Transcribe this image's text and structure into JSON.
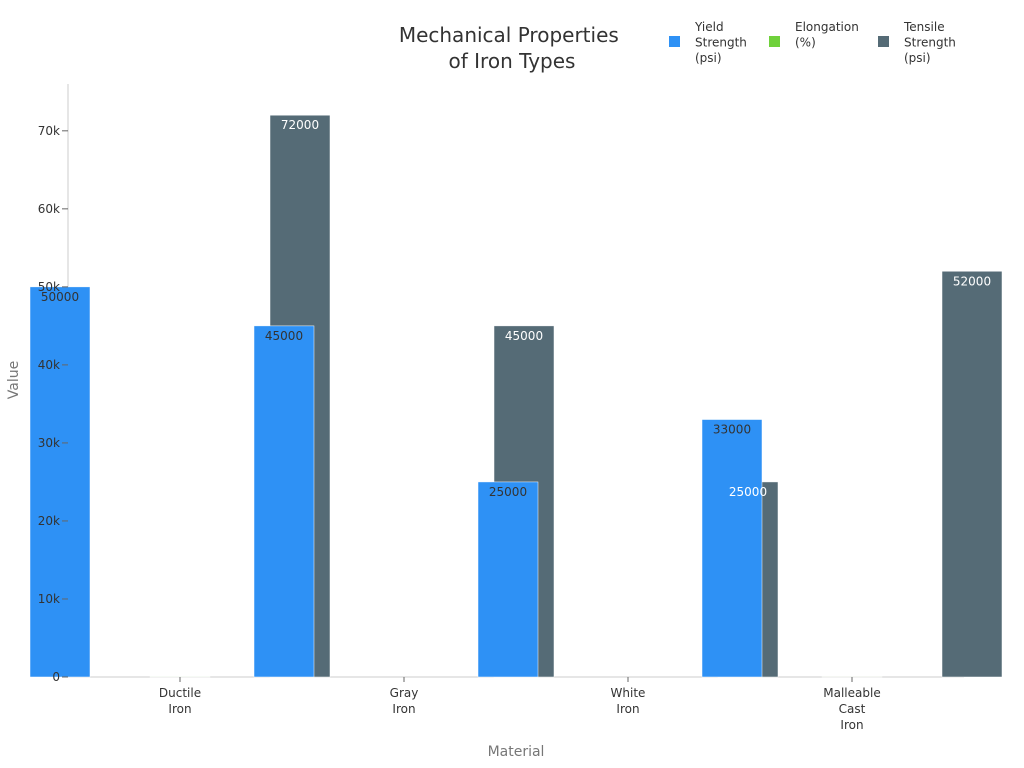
{
  "chart_data": {
    "type": "bar",
    "title_lines": [
      "Mechanical Properties",
      "of Iron Types"
    ],
    "xlabel": "Material",
    "ylabel": "Value",
    "categories": [
      [
        "Ductile",
        "Iron"
      ],
      [
        "Gray",
        "Iron"
      ],
      [
        "White",
        "Iron"
      ],
      [
        "Malleable",
        "Cast",
        "Iron"
      ]
    ],
    "ylim": [
      0,
      76000
    ],
    "yticks": [
      0,
      10000,
      20000,
      30000,
      40000,
      50000,
      60000,
      70000
    ],
    "ytick_labels": [
      "0",
      "10k",
      "20k",
      "30k",
      "40k",
      "50k",
      "60k",
      "70k"
    ],
    "legend_position": "top-right",
    "series": [
      {
        "name_lines": [
          "Yield",
          "Strength",
          "(psi)"
        ],
        "color": "#2e91f5",
        "label_color": "#333333",
        "values": [
          50000,
          45000,
          25000,
          33000
        ],
        "labels": [
          "50000",
          "45000",
          "25000",
          "33000"
        ]
      },
      {
        "name_lines": [
          "Elongation",
          "(%)"
        ],
        "color": "#6fd13b",
        "label_color": "#333333",
        "values": [
          18,
          0,
          0,
          10
        ],
        "labels": [
          "",
          "",
          "",
          ""
        ]
      },
      {
        "name_lines": [
          "Tensile",
          "Strength",
          "(psi)"
        ],
        "color": "#556b76",
        "label_color": "#ffffff",
        "values": [
          72000,
          45000,
          25000,
          52000
        ],
        "labels": [
          "72000",
          "45000",
          "25000",
          "52000"
        ]
      }
    ]
  }
}
